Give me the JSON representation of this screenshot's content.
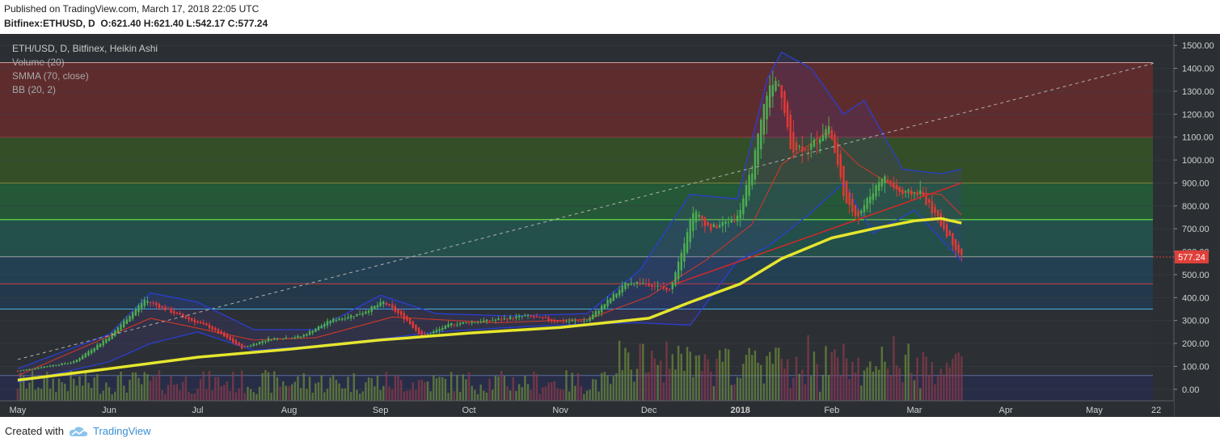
{
  "header": {
    "published": "Published on TradingView.com, March 17, 2018 22:05 UTC",
    "symbol": "Bitfinex:ETHUSD, D",
    "ohlc": "O:621.40 H:621.40 L:542.17 C:577.24"
  },
  "legend": {
    "title": "ETH/USD, D, Bitfinex, Heikin Ashi",
    "volume": "Volume (20)",
    "smma": "SMMA (70, close)",
    "bb": "BB (20, 2)"
  },
  "footer": {
    "created_with": "Created with",
    "brand": "TradingView"
  },
  "colors": {
    "up": "#4caf50",
    "down": "#e53935",
    "smma": "#e6e62e",
    "bb_band": "#2a3fd0",
    "bb_basis": "#c0392b",
    "trendline": "#d62828",
    "price_tag": "#e0403a"
  },
  "chart_data": {
    "type": "candlestick",
    "title": "ETH/USD, D, Bitfinex, Heikin Ashi",
    "xlabel": "",
    "ylabel": "",
    "ylim": [
      -50,
      1550
    ],
    "y_ticks": [
      "1500.00",
      "1400.00",
      "1300.00",
      "1200.00",
      "1100.00",
      "1000.00",
      "900.00",
      "800.00",
      "700.00",
      "600.00",
      "500.00",
      "400.00",
      "300.00",
      "200.00",
      "100.00",
      "0.00"
    ],
    "x_ticks": [
      "May",
      "Jun",
      "Jul",
      "Aug",
      "Sep",
      "Oct",
      "Nov",
      "Dec",
      "2018",
      "Feb",
      "Mar",
      "Apr",
      "May",
      "22"
    ],
    "last_price": "577.24",
    "price_anchors": [
      [
        "2017-05-01",
        80
      ],
      [
        "2017-05-20",
        120
      ],
      [
        "2017-06-01",
        230
      ],
      [
        "2017-06-13",
        390
      ],
      [
        "2017-06-25",
        320
      ],
      [
        "2017-07-05",
        270
      ],
      [
        "2017-07-16",
        180
      ],
      [
        "2017-07-25",
        220
      ],
      [
        "2017-08-05",
        230
      ],
      [
        "2017-08-15",
        300
      ],
      [
        "2017-08-25",
        330
      ],
      [
        "2017-09-02",
        380
      ],
      [
        "2017-09-10",
        300
      ],
      [
        "2017-09-15",
        230
      ],
      [
        "2017-09-25",
        285
      ],
      [
        "2017-10-08",
        300
      ],
      [
        "2017-10-20",
        320
      ],
      [
        "2017-11-01",
        295
      ],
      [
        "2017-11-10",
        300
      ],
      [
        "2017-11-24",
        470
      ],
      [
        "2017-12-01",
        460
      ],
      [
        "2017-12-08",
        430
      ],
      [
        "2017-12-16",
        780
      ],
      [
        "2017-12-22",
        700
      ],
      [
        "2017-12-31",
        750
      ],
      [
        "2018-01-05",
        960
      ],
      [
        "2018-01-10",
        1300
      ],
      [
        "2018-01-14",
        1350
      ],
      [
        "2018-01-18",
        1050
      ],
      [
        "2018-01-25",
        1060
      ],
      [
        "2018-01-31",
        1150
      ],
      [
        "2018-02-06",
        800
      ],
      [
        "2018-02-10",
        760
      ],
      [
        "2018-02-18",
        930
      ],
      [
        "2018-02-25",
        850
      ],
      [
        "2018-03-03",
        860
      ],
      [
        "2018-03-10",
        720
      ],
      [
        "2018-03-17",
        577
      ]
    ],
    "smma": [
      [
        "2017-05-01",
        40
      ],
      [
        "2017-06-01",
        90
      ],
      [
        "2017-07-01",
        140
      ],
      [
        "2017-08-01",
        175
      ],
      [
        "2017-09-01",
        215
      ],
      [
        "2017-10-01",
        245
      ],
      [
        "2017-11-01",
        270
      ],
      [
        "2017-12-01",
        310
      ],
      [
        "2017-12-15",
        380
      ],
      [
        "2018-01-01",
        460
      ],
      [
        "2018-01-15",
        570
      ],
      [
        "2018-02-01",
        660
      ],
      [
        "2018-02-15",
        700
      ],
      [
        "2018-03-01",
        735
      ],
      [
        "2018-03-10",
        745
      ],
      [
        "2018-03-17",
        725
      ]
    ],
    "bb_upper": [
      [
        "2017-05-01",
        90
      ],
      [
        "2017-06-01",
        240
      ],
      [
        "2017-06-15",
        420
      ],
      [
        "2017-07-01",
        380
      ],
      [
        "2017-07-20",
        260
      ],
      [
        "2017-08-10",
        260
      ],
      [
        "2017-09-01",
        410
      ],
      [
        "2017-09-20",
        330
      ],
      [
        "2017-10-15",
        320
      ],
      [
        "2017-11-10",
        330
      ],
      [
        "2017-11-28",
        520
      ],
      [
        "2017-12-15",
        850
      ],
      [
        "2017-12-31",
        830
      ],
      [
        "2018-01-10",
        1350
      ],
      [
        "2018-01-15",
        1470
      ],
      [
        "2018-01-25",
        1400
      ],
      [
        "2018-02-05",
        1200
      ],
      [
        "2018-02-12",
        1260
      ],
      [
        "2018-02-25",
        960
      ],
      [
        "2018-03-10",
        940
      ],
      [
        "2018-03-17",
        960
      ]
    ],
    "bb_lower": [
      [
        "2017-05-01",
        30
      ],
      [
        "2017-06-01",
        120
      ],
      [
        "2017-06-15",
        200
      ],
      [
        "2017-07-01",
        250
      ],
      [
        "2017-07-20",
        170
      ],
      [
        "2017-08-10",
        190
      ],
      [
        "2017-09-01",
        220
      ],
      [
        "2017-09-20",
        250
      ],
      [
        "2017-10-15",
        270
      ],
      [
        "2017-11-10",
        285
      ],
      [
        "2017-11-28",
        290
      ],
      [
        "2017-12-15",
        280
      ],
      [
        "2017-12-31",
        560
      ],
      [
        "2018-01-10",
        620
      ],
      [
        "2018-01-25",
        770
      ],
      [
        "2018-02-05",
        900
      ],
      [
        "2018-02-15",
        680
      ],
      [
        "2018-03-01",
        780
      ],
      [
        "2018-03-17",
        560
      ]
    ],
    "bb_basis": [
      [
        "2017-05-01",
        60
      ],
      [
        "2017-06-15",
        310
      ],
      [
        "2017-07-20",
        215
      ],
      [
        "2017-08-10",
        225
      ],
      [
        "2017-09-05",
        315
      ],
      [
        "2017-10-10",
        290
      ],
      [
        "2017-11-10",
        305
      ],
      [
        "2017-12-01",
        405
      ],
      [
        "2017-12-20",
        560
      ],
      [
        "2018-01-05",
        720
      ],
      [
        "2018-01-15",
        980
      ],
      [
        "2018-01-30",
        1120
      ],
      [
        "2018-02-10",
        980
      ],
      [
        "2018-02-25",
        860
      ],
      [
        "2018-03-10",
        850
      ],
      [
        "2018-03-17",
        760
      ]
    ],
    "levels": [
      {
        "price": 1425,
        "color": "#c8a0a0",
        "fill": "#8b2a2a"
      },
      {
        "price": 1100,
        "color": "#d23c3c",
        "fill": "#3d6a1f"
      },
      {
        "price": 900,
        "color": "#e6e632",
        "fill": "#1f7a3a"
      },
      {
        "price": 740,
        "color": "#7cff4a",
        "fill": "#1e6b5e"
      },
      {
        "price": 578,
        "color": "#a0a0a0",
        "fill": "#1e4f6e"
      },
      {
        "price": 460,
        "color": "#d23c3c",
        "fill": "#1e3f5e"
      },
      {
        "price": 350,
        "color": "#4ab0e6",
        "fill": "#2e3236"
      },
      {
        "price": 60,
        "color": "#5a6aa0",
        "fill": "#262c58"
      }
    ],
    "trendlines": [
      {
        "name": "diagonal",
        "start": [
          "2017-05-01",
          130
        ],
        "end": [
          "2018-05-22",
          1425
        ],
        "dashed": true,
        "color": "#b0b0b0"
      },
      {
        "name": "support",
        "start": [
          "2017-12-10",
          460
        ],
        "end": [
          "2018-03-17",
          900
        ],
        "dashed": false,
        "color": "#d62828"
      }
    ]
  }
}
